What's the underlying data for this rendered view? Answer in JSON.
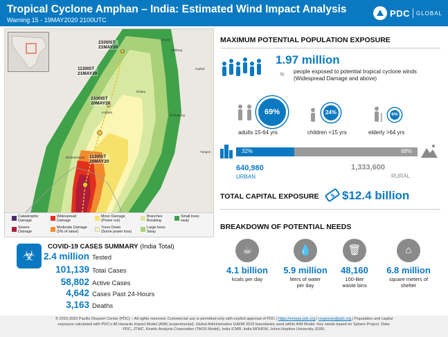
{
  "header": {
    "title": "Tropical Cyclone Amphan – India: Estimated Wind Impact Analysis",
    "subtitle": "Warning 15 - 19MAY2020 2100UTC",
    "logo_text": "PDC",
    "logo_sub": "GLOBAL",
    "bg_color": "#0b79c1"
  },
  "map": {
    "advisories": [
      {
        "label": "2330IST\n21MAY20"
      },
      {
        "label": "1130IST\n21MAY20"
      },
      {
        "label": "2330IST\n20MAY20"
      },
      {
        "label": "1130IST\n20MAY20"
      }
    ],
    "cities": [
      "Dispur",
      "Shillong",
      "Imphal",
      "Dhaka",
      "Kolkata",
      "Chittagong",
      "Bhubaneswar",
      "Yangon"
    ],
    "legend": [
      {
        "label": "Catastrophic\nDamage",
        "color": "#4b2a6d"
      },
      {
        "label": "Widespread\nDamage",
        "color": "#e0301e"
      },
      {
        "label": "Minor Damage\n(Power out)",
        "color": "#f6e26b"
      },
      {
        "label": "Branches\nBreaking",
        "color": "#d7e8a0"
      },
      {
        "label": "Small trees\nsway",
        "color": "#3fa14a"
      },
      {
        "label": "Severe\nDamage",
        "color": "#b01c3a"
      },
      {
        "label": "Moderate Damage\n(5% of value)",
        "color": "#f28a2e"
      },
      {
        "label": "Trees Down\n(Some power loss)",
        "color": "#fbf6b4"
      },
      {
        "label": "Large trees\nSway",
        "color": "#a8d178"
      }
    ]
  },
  "covid": {
    "title": "COVID-19 CASES SUMMARY",
    "title_suffix": "(India Total)",
    "rows": [
      {
        "value": "2.4 million",
        "label": "Tested"
      },
      {
        "value": "101,139",
        "label": "Total Cases"
      },
      {
        "value": "58,802",
        "label": "Active Cases"
      },
      {
        "value": "4,642",
        "label": "Cases Past 24-Hours"
      },
      {
        "value": "3,163",
        "label": "Deaths"
      }
    ]
  },
  "population": {
    "section_title": "MAXIMUM POTENTIAL POPULATION EXPOSURE",
    "total": "1.97 million",
    "total_desc_1": "people exposed to potential tropical cyclone winds",
    "total_desc_2": "(Widespread Damage and above)",
    "groups": [
      {
        "pct": "69%",
        "label": "adults 15-64 yrs"
      },
      {
        "pct": "24%",
        "label": "children <15 yrs"
      },
      {
        "pct": "6%",
        "label": "elderly >64 yrs"
      }
    ],
    "urban_pct": "32%",
    "rural_pct": "68%",
    "urban_fraction": 0.32,
    "urban_value": "640,980",
    "urban_label": "URBAN",
    "rural_value": "1,333,600",
    "rural_label": "RURAL"
  },
  "capital": {
    "section_title": "TOTAL CAPITAL EXPOSURE",
    "value": "$12.4 billion"
  },
  "needs": {
    "section_title": "BREAKDOWN OF POTENTIAL NEEDS",
    "items": [
      {
        "value": "4.1 billion",
        "label": "kcals per day",
        "icon": "food-bowl-icon"
      },
      {
        "value": "5.9 million",
        "label": "liters of water\nper day",
        "icon": "water-drop-icon"
      },
      {
        "value": "48,160",
        "label": "100-liter\nwaste bins",
        "icon": "waste-bin-icon"
      },
      {
        "value": "6.8 million",
        "label": "square meters of\nshelter",
        "icon": "shelter-icon"
      }
    ]
  },
  "footer": {
    "line1_a": "© 2015-2020 Pacific Disaster Center (PDC) – All rights reserved. Commercial use is permitted only with explicit approval of PDC |",
    "link1": "https://emops.pdc.org",
    "sep": "|",
    "link2": "response@pdc.org",
    "line1_b": "| Population and capital",
    "line2": "exposure calculated with PDC's All Hazards Impact Model (AIM) (experimental). Global Administrative GADM 2015 boundaries used within AIM Model. Key needs based on Sphere Project. Data:",
    "line3": "PDC, JTWC, Kinetic Analysis Corporation (TAOS Model), India ICMR, India MOHFW, Johns Hopkins University, ESRI."
  }
}
